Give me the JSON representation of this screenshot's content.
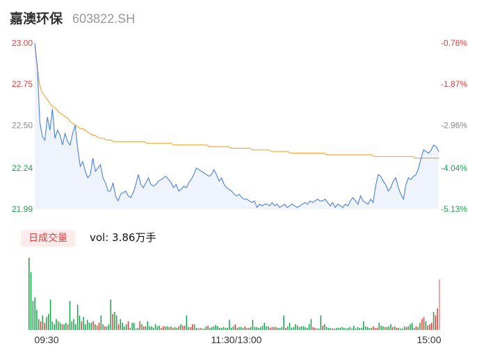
{
  "header": {
    "name": "嘉澳环保",
    "code": "603822.SH"
  },
  "volume_label": {
    "badge": "日成交量",
    "prefix": "vol: ",
    "value": "3.86万手"
  },
  "colors": {
    "price": "#4a7ee0",
    "avg": "#f2a93b",
    "up": "#e63a3a",
    "down": "#16a34a",
    "area": "#eef3fc",
    "last_bar": "#f08a8a"
  },
  "chart_data": [
    {
      "type": "line",
      "title": "",
      "x_ticks": [
        "09:30",
        "11:30/13:00",
        "15:00"
      ],
      "y_ticks": [
        "23.00",
        "22.75",
        "22.50",
        "22.24",
        "21.99"
      ],
      "y_ticks_right": [
        "-0.78%",
        "-1.87%",
        "-2.96%",
        "-4.04%",
        "-5.13%"
      ],
      "ylim": [
        21.99,
        23.0
      ],
      "series": [
        {
          "values": [
            23.0,
            22.86,
            22.52,
            22.43,
            22.41,
            22.55,
            22.47,
            22.6,
            22.42,
            22.47,
            22.44,
            22.38,
            22.45,
            22.4,
            22.38,
            22.45,
            22.5,
            22.36,
            22.25,
            22.28,
            22.22,
            22.18,
            22.2,
            22.3,
            22.22,
            22.24,
            22.26,
            22.18,
            22.15,
            22.1,
            22.1,
            22.15,
            22.07,
            22.04,
            22.08,
            22.09,
            22.1,
            22.07,
            22.06,
            22.09,
            22.14,
            22.2,
            22.14,
            22.12,
            22.15,
            22.18,
            22.14,
            22.13,
            22.14,
            22.16,
            22.17,
            22.18,
            22.19,
            22.17,
            22.15,
            22.12,
            22.14,
            22.1,
            22.11,
            22.13,
            22.12,
            22.15,
            22.17,
            22.2,
            22.24,
            22.23,
            22.22,
            22.21,
            22.2,
            22.19,
            22.2,
            22.23,
            22.2,
            22.16,
            22.18,
            22.14,
            22.12,
            22.11,
            22.1,
            22.08,
            22.07,
            22.08,
            22.06,
            22.05,
            22.05,
            22.04,
            22.03,
            22.04,
            22.0,
            22.02,
            22.01,
            22.02,
            22.02,
            22.01,
            22.03,
            22.01,
            22.02,
            22.0,
            22.01,
            22.02,
            22.0,
            22.01,
            22.02,
            22.01,
            22.0,
            22.01,
            22.02,
            22.03,
            22.02,
            22.04,
            22.03,
            22.04,
            22.05,
            22.04,
            22.04,
            22.05,
            22.03,
            22.01,
            22.03,
            22.0,
            22.02,
            22.01,
            22.0,
            22.02,
            22.01,
            22.04,
            22.06,
            22.04,
            22.02,
            22.07,
            22.04,
            22.03,
            22.02,
            22.05,
            22.03,
            22.13,
            22.2,
            22.19,
            22.16,
            22.14,
            22.1,
            22.12,
            22.16,
            22.18,
            22.12,
            22.08,
            22.05,
            22.14,
            22.18,
            22.17,
            22.19,
            22.2,
            22.24,
            22.3,
            22.35,
            22.34,
            22.33,
            22.35,
            22.38,
            22.37,
            22.34
          ]
        },
        {
          "values": [
            23.0,
            22.86,
            22.75,
            22.7,
            22.68,
            22.66,
            22.64,
            22.62,
            22.61,
            22.6,
            22.58,
            22.57,
            22.56,
            22.55,
            22.54,
            22.52,
            22.51,
            22.5,
            22.49,
            22.48,
            22.48,
            22.47,
            22.46,
            22.45,
            22.44,
            22.44,
            22.43,
            22.42,
            22.42,
            22.42,
            22.41,
            22.41,
            22.41,
            22.4,
            22.4,
            22.4,
            22.4,
            22.4,
            22.4,
            22.4,
            22.4,
            22.4,
            22.4,
            22.4,
            22.4,
            22.4,
            22.4,
            22.39,
            22.39,
            22.39,
            22.39,
            22.39,
            22.39,
            22.39,
            22.39,
            22.39,
            22.39,
            22.39,
            22.38,
            22.38,
            22.38,
            22.38,
            22.38,
            22.38,
            22.38,
            22.38,
            22.38,
            22.38,
            22.38,
            22.38,
            22.38,
            22.38,
            22.38,
            22.37,
            22.37,
            22.37,
            22.37,
            22.37,
            22.37,
            22.37,
            22.37,
            22.37,
            22.36,
            22.36,
            22.36,
            22.36,
            22.36,
            22.36,
            22.36,
            22.36,
            22.36,
            22.35,
            22.35,
            22.35,
            22.35,
            22.35,
            22.35,
            22.35,
            22.35,
            22.34,
            22.34,
            22.34,
            22.34,
            22.34,
            22.34,
            22.34,
            22.34,
            22.33,
            22.33,
            22.33,
            22.33,
            22.33,
            22.33,
            22.33,
            22.33,
            22.33,
            22.33,
            22.33,
            22.33,
            22.33,
            22.33,
            22.33,
            22.32,
            22.32,
            22.32,
            22.32,
            22.32,
            22.32,
            22.32,
            22.32,
            22.32,
            22.32,
            22.32,
            22.32,
            22.32,
            22.32,
            22.32,
            22.32,
            22.32,
            22.32,
            22.32,
            22.32,
            22.31,
            22.31,
            22.31,
            22.31,
            22.31,
            22.31,
            22.31,
            22.31,
            22.31,
            22.31,
            22.31,
            22.31,
            22.31,
            22.31,
            22.31,
            22.31,
            22.31,
            22.3,
            22.3,
            22.3,
            22.3,
            22.3,
            22.3,
            22.3,
            22.3,
            22.3,
            22.3,
            22.3
          ]
        }
      ]
    },
    {
      "type": "bar",
      "title": "",
      "x_ticks": [
        "09:30",
        "11:30/13:00",
        "15:00"
      ],
      "values": [
        100,
        80,
        40,
        45,
        28,
        15,
        12,
        20,
        10,
        18,
        22,
        42,
        12,
        8,
        15,
        12,
        10,
        8,
        8,
        10,
        8,
        40,
        12,
        15,
        8,
        35,
        20,
        12,
        18,
        8,
        14,
        10,
        10,
        12,
        8,
        6,
        10,
        20,
        8,
        5,
        5,
        8,
        42,
        22,
        25,
        20,
        8,
        15,
        10,
        5,
        8,
        12,
        3,
        10,
        10,
        2,
        3,
        12,
        8,
        5,
        5,
        12,
        5,
        5,
        3,
        8,
        5,
        6,
        3,
        5,
        5,
        5,
        4,
        5,
        3,
        4,
        3,
        5,
        8,
        6,
        6,
        20,
        4,
        4,
        8,
        8,
        3,
        2,
        3,
        2,
        2,
        5,
        6,
        3,
        4,
        5,
        7,
        5,
        3,
        3,
        4,
        3,
        3,
        14,
        3,
        5,
        8,
        3,
        4,
        4,
        3,
        5,
        3,
        3,
        4,
        14,
        4,
        4,
        3,
        4,
        6,
        10,
        5,
        5,
        3,
        4,
        4,
        4,
        3,
        3,
        4,
        20,
        3,
        5,
        10,
        3,
        4,
        8,
        6,
        4,
        5,
        5,
        4,
        3,
        8,
        15,
        4,
        3,
        2,
        2,
        20,
        6,
        8,
        4,
        3,
        3,
        2,
        2,
        3,
        3,
        3,
        4,
        3,
        2,
        3,
        4,
        2,
        6,
        2,
        4,
        3,
        3,
        12,
        5,
        4,
        3,
        3,
        5,
        3,
        3,
        10,
        6,
        5,
        4,
        4,
        5,
        8,
        4,
        5,
        3,
        3,
        2,
        2,
        5,
        4,
        5,
        8,
        10,
        3,
        5,
        4,
        10,
        15,
        18,
        12,
        6,
        8,
        10,
        25,
        20,
        30,
        70
      ],
      "dir": [
        0,
        0,
        0,
        0,
        0,
        0,
        1,
        0,
        1,
        0,
        0,
        0,
        0,
        0,
        0,
        0,
        0,
        1,
        0,
        0,
        1,
        0,
        0,
        0,
        0,
        0,
        0,
        1,
        0,
        0,
        0,
        0,
        0,
        1,
        0,
        1,
        1,
        0,
        0,
        1,
        0,
        0,
        0,
        1,
        0,
        0,
        1,
        0,
        0,
        0,
        0,
        1,
        0,
        0,
        0,
        0,
        0,
        1,
        0,
        1,
        0,
        0,
        0,
        0,
        0,
        0,
        0,
        0,
        1,
        1,
        0,
        0,
        1,
        0,
        1,
        0,
        0,
        1,
        0,
        1,
        1,
        0,
        0,
        1,
        1,
        0,
        0,
        1,
        1,
        0,
        0,
        0,
        1,
        0,
        0,
        0,
        0,
        0,
        0,
        0,
        0,
        0,
        0,
        0,
        0,
        0,
        1,
        0,
        0,
        0,
        0,
        1,
        0,
        1,
        0,
        0,
        0,
        0,
        0,
        0,
        0,
        0,
        0,
        0,
        1,
        1,
        0,
        1,
        0,
        0,
        0,
        0,
        1,
        0,
        0,
        0,
        0,
        0,
        0,
        0,
        0,
        0,
        0,
        0,
        0,
        0,
        1,
        1,
        0,
        0,
        0,
        1,
        0,
        0,
        0,
        0,
        1,
        0,
        0,
        0,
        0,
        0,
        0,
        0,
        0,
        0,
        0,
        0,
        0,
        0,
        0,
        0,
        0,
        0,
        0,
        0,
        0,
        1,
        1,
        1,
        0,
        0,
        0,
        1,
        0,
        0,
        0,
        1,
        0,
        1,
        0,
        0,
        0,
        0,
        1,
        0,
        0,
        0,
        0,
        1,
        0,
        0,
        1,
        1,
        0,
        1,
        1,
        1,
        0,
        1,
        1,
        1
      ]
    }
  ]
}
